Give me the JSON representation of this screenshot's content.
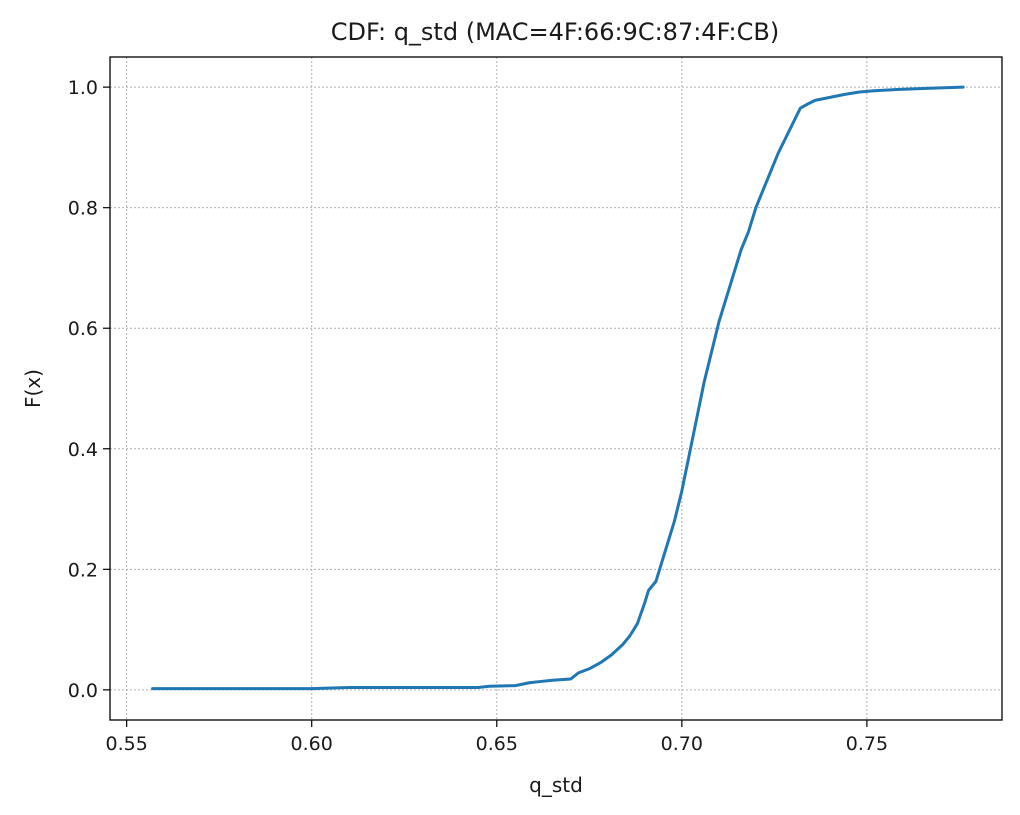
{
  "chart_data": {
    "type": "line",
    "title": "CDF: q_std (MAC=4F:66:9C:87:4F:CB)",
    "xlabel": "q_std",
    "ylabel": "F(x)",
    "xlim": [
      0.5455,
      0.7865
    ],
    "ylim": [
      -0.05,
      1.05
    ],
    "xticks": [
      0.55,
      0.6,
      0.65,
      0.7,
      0.75
    ],
    "xtick_labels": [
      "0.55",
      "0.60",
      "0.65",
      "0.70",
      "0.75"
    ],
    "yticks": [
      0.0,
      0.2,
      0.4,
      0.6,
      0.8,
      1.0
    ],
    "ytick_labels": [
      "0.0",
      "0.2",
      "0.4",
      "0.6",
      "0.8",
      "1.0"
    ],
    "grid": true,
    "grid_style": "dotted",
    "series": [
      {
        "color": "#1f77b4",
        "x": [
          0.557,
          0.57,
          0.6,
          0.61,
          0.63,
          0.645,
          0.648,
          0.655,
          0.659,
          0.662,
          0.665,
          0.67,
          0.672,
          0.675,
          0.678,
          0.681,
          0.684,
          0.686,
          0.688,
          0.69,
          0.691,
          0.693,
          0.694,
          0.696,
          0.698,
          0.7,
          0.702,
          0.704,
          0.706,
          0.708,
          0.71,
          0.712,
          0.714,
          0.716,
          0.718,
          0.72,
          0.722,
          0.724,
          0.726,
          0.728,
          0.73,
          0.732,
          0.734,
          0.736,
          0.74,
          0.744,
          0.748,
          0.752,
          0.758,
          0.766,
          0.776
        ],
        "y": [
          0.002,
          0.002,
          0.002,
          0.004,
          0.004,
          0.004,
          0.006,
          0.007,
          0.012,
          0.014,
          0.016,
          0.018,
          0.028,
          0.035,
          0.045,
          0.058,
          0.075,
          0.09,
          0.11,
          0.145,
          0.165,
          0.18,
          0.2,
          0.24,
          0.28,
          0.33,
          0.39,
          0.45,
          0.51,
          0.56,
          0.61,
          0.65,
          0.69,
          0.73,
          0.76,
          0.8,
          0.83,
          0.86,
          0.89,
          0.915,
          0.94,
          0.965,
          0.972,
          0.978,
          0.983,
          0.988,
          0.992,
          0.994,
          0.996,
          0.998,
          1.0
        ]
      }
    ]
  }
}
